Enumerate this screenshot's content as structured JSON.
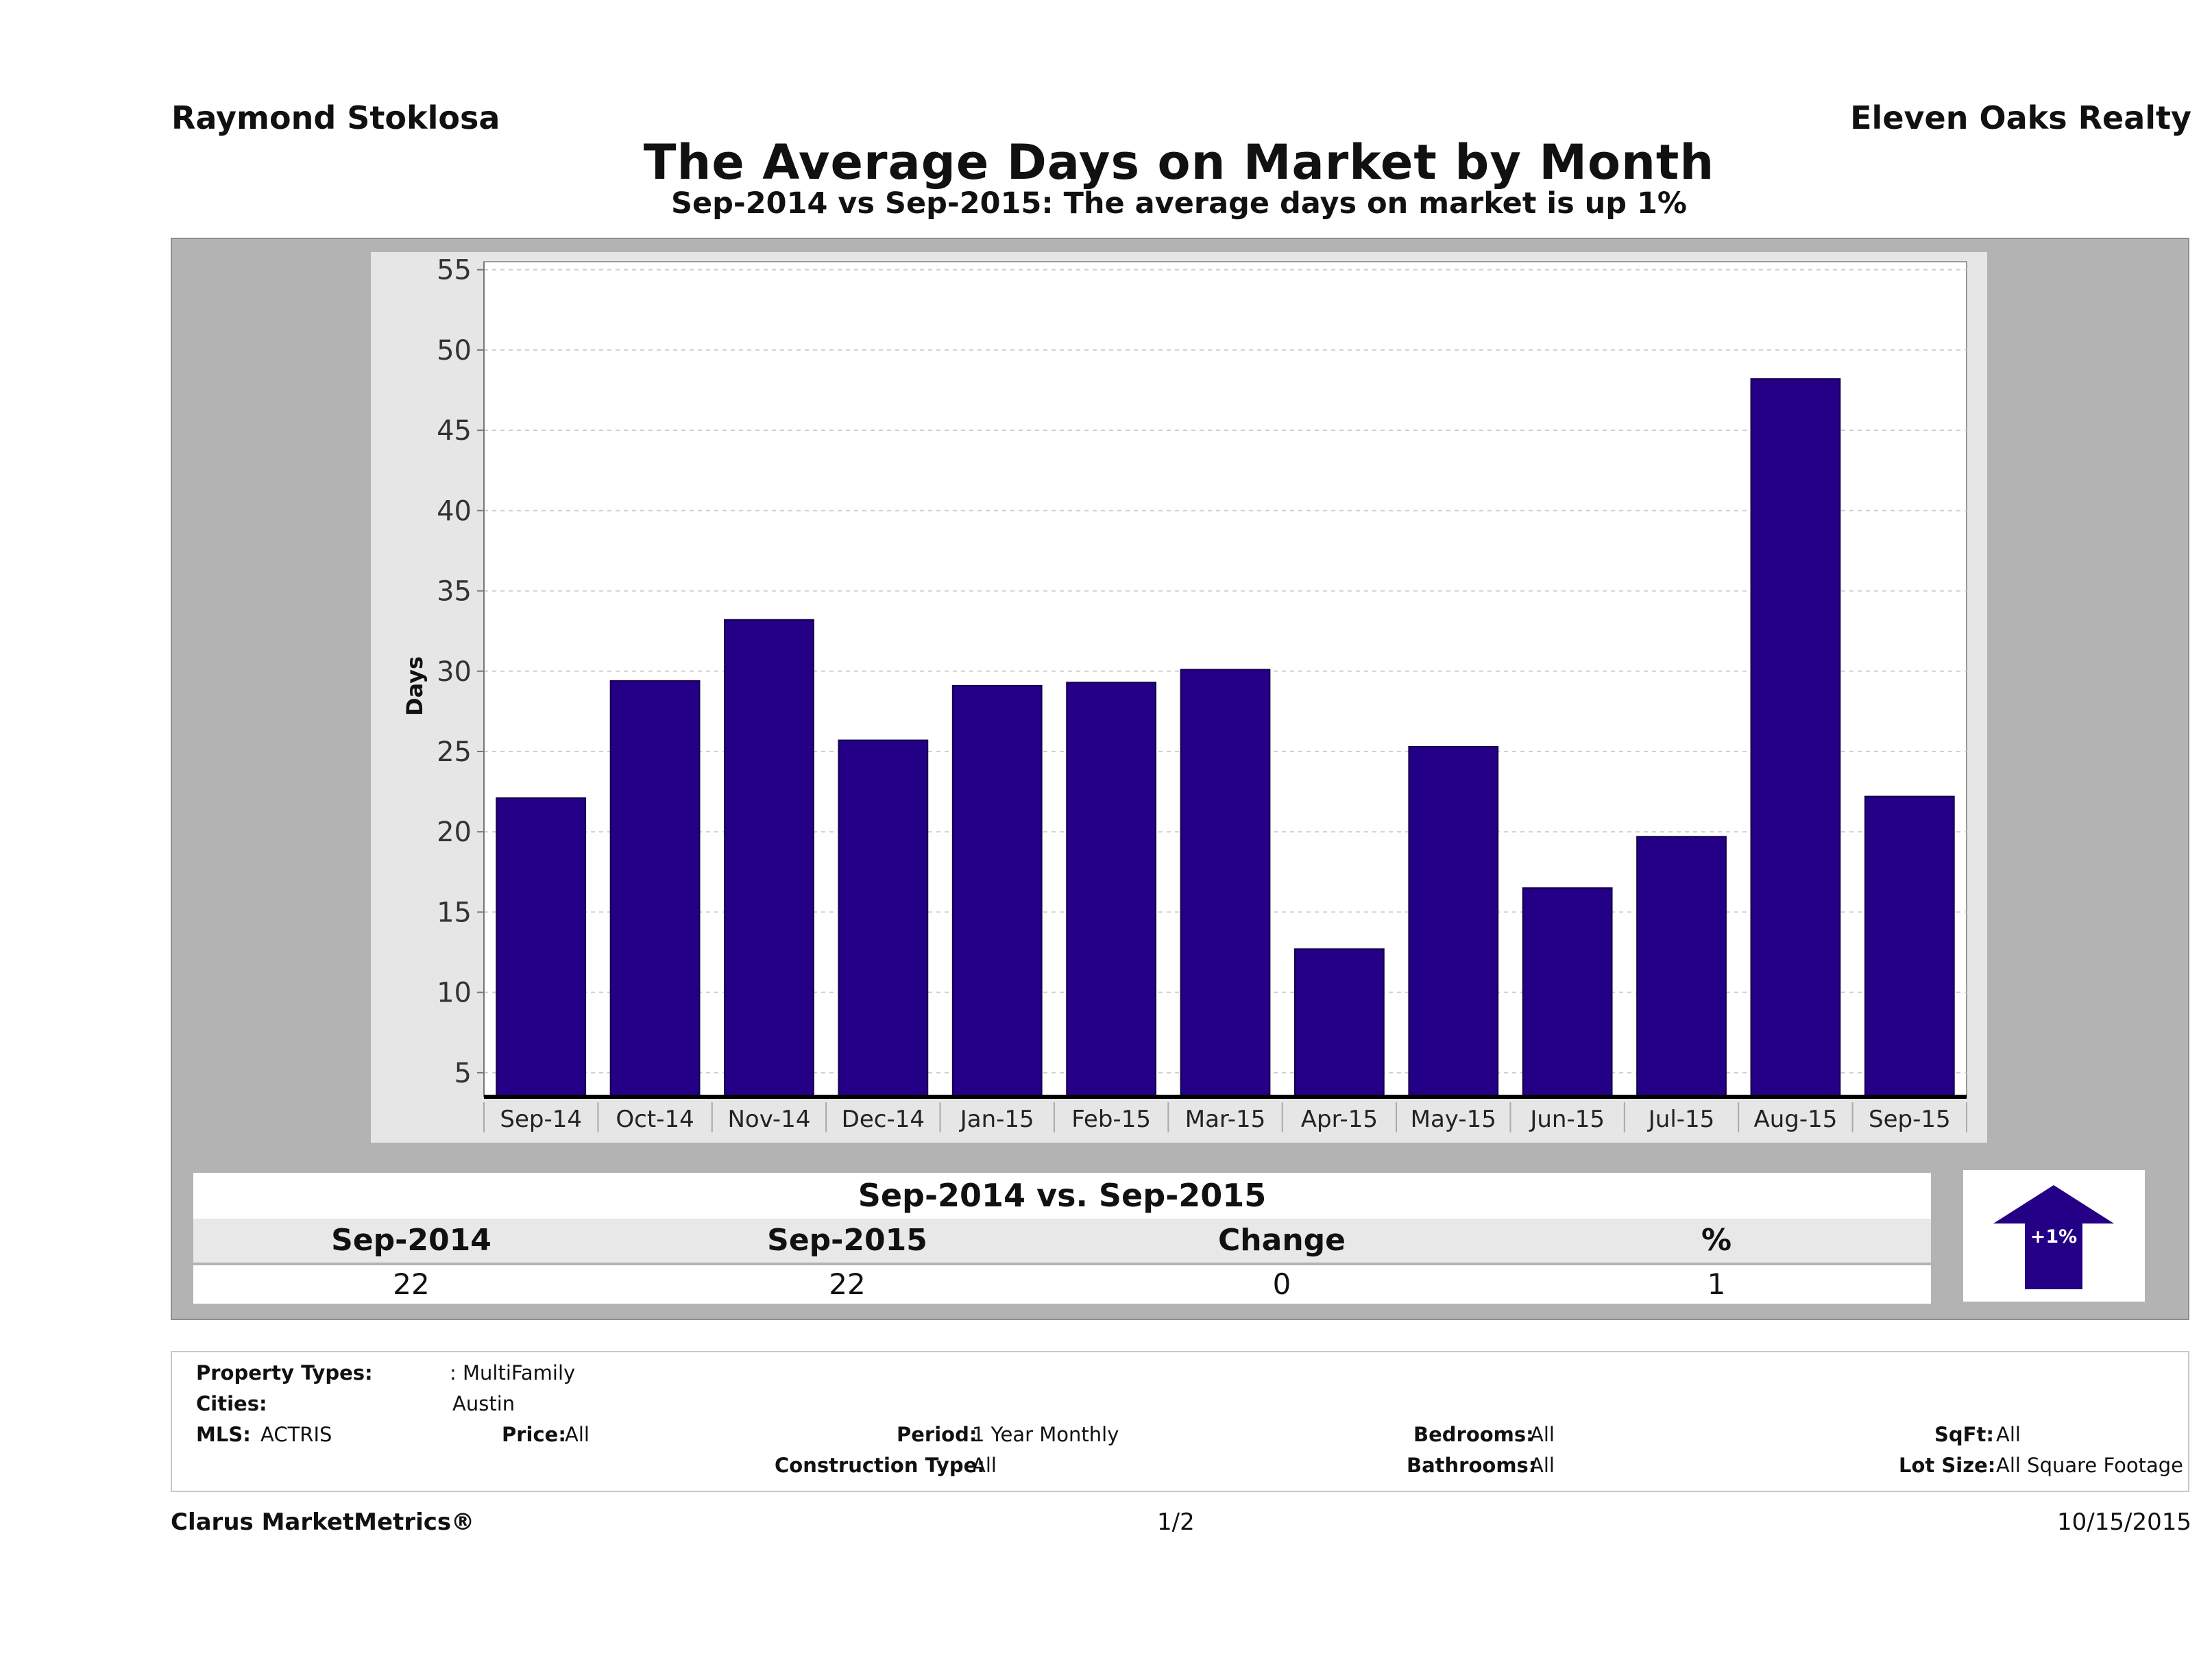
{
  "header": {
    "agent": "Raymond Stoklosa",
    "company": "Eleven Oaks Realty",
    "title": "The Average Days on Market by Month",
    "subtitle": "Sep-2014 vs Sep-2015: The average days on market is up 1%"
  },
  "chart_data": {
    "type": "bar",
    "categories": [
      "Sep-14",
      "Oct-14",
      "Nov-14",
      "Dec-14",
      "Jan-15",
      "Feb-15",
      "Mar-15",
      "Apr-15",
      "May-15",
      "Jun-15",
      "Jul-15",
      "Aug-15",
      "Sep-15"
    ],
    "values": [
      22.1,
      29.4,
      33.2,
      25.7,
      29.1,
      29.3,
      30.1,
      12.7,
      25.3,
      16.5,
      19.7,
      48.2,
      22.2
    ],
    "ylabel": "Days",
    "yticks": [
      5,
      10,
      15,
      20,
      25,
      30,
      35,
      40,
      45,
      50,
      55
    ],
    "ylim": [
      3.5,
      55.5
    ],
    "grid": true,
    "bar_color": "#230085"
  },
  "summary": {
    "title": "Sep-2014 vs. Sep-2015",
    "headers": [
      "Sep-2014",
      "Sep-2015",
      "Change",
      "%"
    ],
    "values": [
      "22",
      "22",
      "0",
      "1"
    ],
    "badge": "+1%",
    "badge_color": "#230085"
  },
  "criteria": {
    "property_types_label": "Property Types:",
    "property_types_value": ": MultiFamily",
    "cities_label": "Cities:",
    "cities_value": "Austin",
    "mls_label": "MLS:",
    "mls_value": "ACTRIS",
    "price_label": "Price:",
    "price_value": "All",
    "period_label": "Period:",
    "period_value": "1 Year Monthly",
    "construction_label": "Construction Type:",
    "construction_value": "All",
    "bedrooms_label": "Bedrooms:",
    "bedrooms_value": "All",
    "bathrooms_label": "Bathrooms:",
    "bathrooms_value": "All",
    "sqft_label": "SqFt:",
    "sqft_value": "All",
    "lotsize_label": "Lot Size:",
    "lotsize_value": "All Square Footage"
  },
  "footer": {
    "brand": "Clarus MarketMetrics®",
    "page": "1/2",
    "date": "10/15/2015"
  }
}
